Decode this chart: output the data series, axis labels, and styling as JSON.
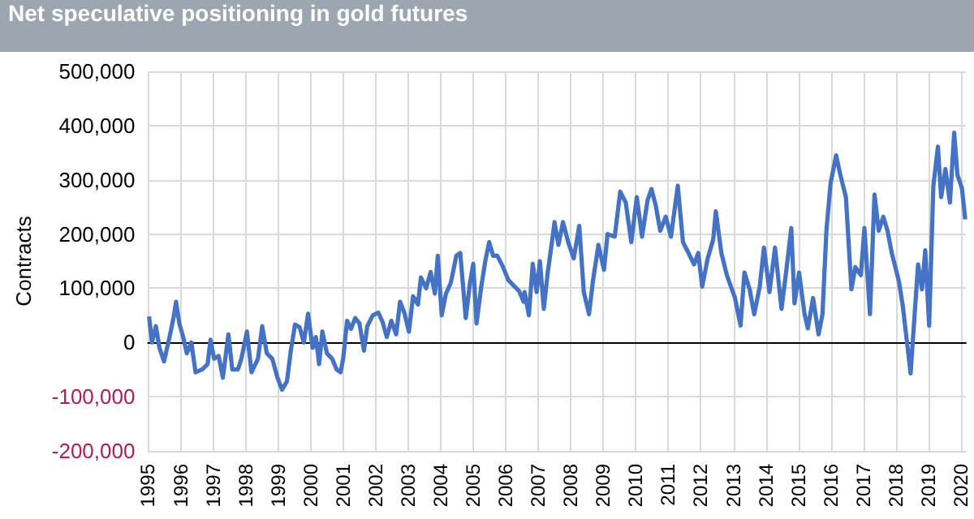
{
  "chart_data": {
    "type": "line",
    "title": "Net speculative positioning in gold futures",
    "ylabel": "Contracts",
    "xlim": [
      1995,
      2020.15
    ],
    "xticks": [
      1995,
      1996,
      1997,
      1998,
      1999,
      2000,
      2001,
      2002,
      2003,
      2004,
      2005,
      2006,
      2007,
      2008,
      2009,
      2010,
      2011,
      2012,
      2013,
      2014,
      2015,
      2016,
      2017,
      2018,
      2019,
      2020
    ],
    "ylim": [
      -200000,
      500000
    ],
    "yticks": [
      {
        "value": -200000,
        "label": "-200,000"
      },
      {
        "value": -100000,
        "label": "-100,000"
      },
      {
        "value": 0,
        "label": "0"
      },
      {
        "value": 100000,
        "label": "100,000"
      },
      {
        "value": 200000,
        "label": "200,000"
      },
      {
        "value": 300000,
        "label": "300,000"
      },
      {
        "value": 400000,
        "label": "400,000"
      },
      {
        "value": 500000,
        "label": "500,000"
      }
    ],
    "grid": true,
    "marker": "none",
    "line_style": "solid",
    "series": [
      {
        "color": "#4472c4",
        "x": [
          1995.03,
          1995.12,
          1995.24,
          1995.35,
          1995.49,
          1995.66,
          1995.79,
          1995.86,
          1995.96,
          1996.08,
          1996.19,
          1996.33,
          1996.46,
          1996.66,
          1996.83,
          1996.92,
          1997.03,
          1997.17,
          1997.3,
          1997.47,
          1997.59,
          1997.76,
          1997.87,
          1998.04,
          1998.18,
          1998.38,
          1998.51,
          1998.65,
          1998.82,
          1998.98,
          1999.12,
          1999.27,
          1999.39,
          1999.52,
          1999.66,
          1999.79,
          1999.92,
          2000.06,
          2000.16,
          2000.26,
          2000.36,
          2000.5,
          2000.66,
          2000.8,
          2000.92,
          2001.0,
          2001.12,
          2001.24,
          2001.37,
          2001.5,
          2001.64,
          2001.74,
          2001.91,
          2002.08,
          2002.21,
          2002.34,
          2002.48,
          2002.63,
          2002.75,
          2002.88,
          2003.02,
          2003.15,
          2003.3,
          2003.39,
          2003.55,
          2003.69,
          2003.82,
          2003.91,
          2004.03,
          2004.16,
          2004.31,
          2004.48,
          2004.6,
          2004.77,
          2004.9,
          2005.0,
          2005.1,
          2005.24,
          2005.37,
          2005.49,
          2005.61,
          2005.74,
          2005.91,
          2006.08,
          2006.24,
          2006.41,
          2006.55,
          2006.58,
          2006.71,
          2006.83,
          2006.95,
          2007.05,
          2007.17,
          2007.29,
          2007.42,
          2007.5,
          2007.62,
          2007.76,
          2007.92,
          2008.09,
          2008.26,
          2008.4,
          2008.56,
          2008.68,
          2008.85,
          2009.02,
          2009.13,
          2009.35,
          2009.52,
          2009.69,
          2009.86,
          2010.03,
          2010.19,
          2010.36,
          2010.48,
          2010.61,
          2010.75,
          2010.92,
          2011.08,
          2011.29,
          2011.45,
          2011.62,
          2011.79,
          2011.92,
          2012.04,
          2012.21,
          2012.38,
          2012.46,
          2012.63,
          2012.8,
          2013.05,
          2013.22,
          2013.34,
          2013.5,
          2013.64,
          2013.81,
          2013.94,
          2014.11,
          2014.28,
          2014.48,
          2014.61,
          2014.78,
          2014.88,
          2015.02,
          2015.19,
          2015.29,
          2015.45,
          2015.62,
          2015.74,
          2015.86,
          2015.99,
          2016.16,
          2016.29,
          2016.46,
          2016.63,
          2016.75,
          2016.92,
          2017.03,
          2017.2,
          2017.34,
          2017.47,
          2017.61,
          2017.74,
          2017.87,
          2018.09,
          2018.21,
          2018.34,
          2018.45,
          2018.55,
          2018.68,
          2018.8,
          2018.9,
          2019.02,
          2019.15,
          2019.29,
          2019.39,
          2019.52,
          2019.66,
          2019.79,
          2019.89,
          2020.03,
          2020.13
        ],
        "values": [
          48000,
          0,
          30000,
          -10000,
          -35000,
          10000,
          48000,
          75000,
          35000,
          10000,
          -20000,
          0,
          -55000,
          -50000,
          -40000,
          5000,
          -30000,
          -25000,
          -65000,
          15000,
          -50000,
          -50000,
          -30000,
          20000,
          -55000,
          -30000,
          30000,
          -20000,
          -30000,
          -65000,
          -87000,
          -72000,
          -15000,
          33000,
          28000,
          0,
          53000,
          -10000,
          10000,
          -40000,
          20000,
          -20000,
          -30000,
          -50000,
          -55000,
          -30000,
          40000,
          25000,
          45000,
          35000,
          -15000,
          30000,
          50000,
          55000,
          38000,
          10000,
          40000,
          15000,
          75000,
          55000,
          20000,
          85000,
          70000,
          120000,
          100000,
          130000,
          90000,
          160000,
          50000,
          90000,
          110000,
          160000,
          165000,
          45000,
          110000,
          145000,
          35000,
          100000,
          150000,
          185000,
          160000,
          160000,
          140000,
          115000,
          105000,
          95000,
          75000,
          93000,
          50000,
          145000,
          93000,
          150000,
          62000,
          129000,
          185000,
          222000,
          180000,
          222000,
          185000,
          155000,
          215000,
          93000,
          52000,
          113000,
          180000,
          134000,
          200000,
          195000,
          278000,
          258000,
          185000,
          268000,
          195000,
          262000,
          283000,
          253000,
          206000,
          232000,
          195000,
          289000,
          185000,
          165000,
          144000,
          165000,
          103000,
          155000,
          190000,
          242000,
          165000,
          124000,
          82000,
          31000,
          129000,
          98000,
          52000,
          103000,
          175000,
          93000,
          175000,
          62000,
          124000,
          211000,
          72000,
          129000,
          52000,
          26000,
          82000,
          15000,
          52000,
          206000,
          294000,
          345000,
          309000,
          268000,
          98000,
          139000,
          124000,
          211000,
          52000,
          273000,
          206000,
          232000,
          206000,
          165000,
          113000,
          67000,
          0,
          -57000,
          31000,
          144000,
          98000,
          170000,
          31000,
          289000,
          361000,
          268000,
          320000,
          258000,
          387000,
          309000,
          284000,
          227000
        ]
      }
    ]
  }
}
